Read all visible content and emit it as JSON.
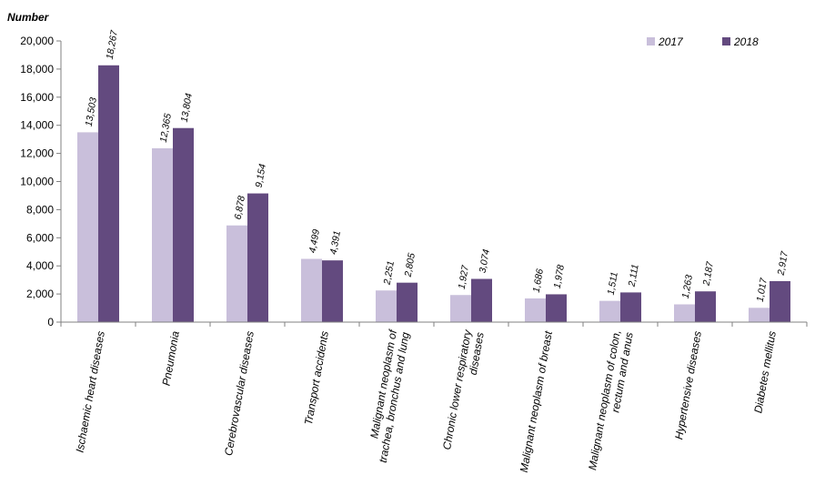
{
  "chart_data": {
    "type": "bar",
    "ylabel": "Number",
    "ylim": [
      0,
      20000
    ],
    "yticks": [
      0,
      2000,
      4000,
      6000,
      8000,
      10000,
      12000,
      14000,
      16000,
      18000,
      20000
    ],
    "ytick_labels": [
      "0",
      "2,000",
      "4,000",
      "6,000",
      "8,000",
      "10,000",
      "12,000",
      "14,000",
      "16,000",
      "18,000",
      "20,000"
    ],
    "grid": false,
    "legend_position": "top-right",
    "categories": [
      [
        "Ischaemic heart diseases"
      ],
      [
        "Pneumonia"
      ],
      [
        "Cerebrovascular diseases"
      ],
      [
        "Transport accidents"
      ],
      [
        "Malignant neoplasm of",
        "trachea, bronchus and lung"
      ],
      [
        "Chronic lower respiratory",
        "diseases"
      ],
      [
        "Malignant neoplasm of breast"
      ],
      [
        "Malignant neoplasm of colon,",
        "rectum and anus"
      ],
      [
        "Hypertensive diseases"
      ],
      [
        "Diabetes mellitus"
      ]
    ],
    "series": [
      {
        "name": "2017",
        "color": "#c9bfdb",
        "values": [
          13503,
          12365,
          6878,
          4499,
          2251,
          1927,
          1686,
          1511,
          1263,
          1017
        ],
        "labels": [
          "13,503",
          "12,365",
          "6,878",
          "4,499",
          "2,251",
          "1,927",
          "1,686",
          "1,511",
          "1,263",
          "1,017"
        ]
      },
      {
        "name": "2018",
        "color": "#634a7f",
        "values": [
          18267,
          13804,
          9154,
          4391,
          2805,
          3074,
          1978,
          2111,
          2187,
          2917
        ],
        "labels": [
          "18,267",
          "13,804",
          "9,154",
          "4,391",
          "2,805",
          "3,074",
          "1,978",
          "2,111",
          "2,187",
          "2,917"
        ]
      }
    ]
  }
}
